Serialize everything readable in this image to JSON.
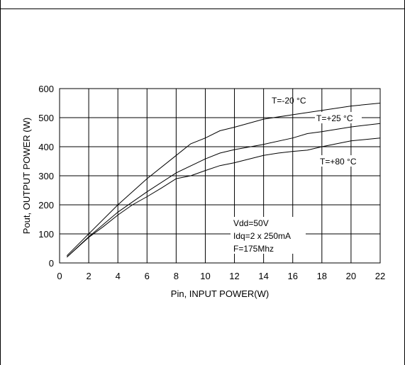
{
  "chart_data": {
    "type": "line",
    "title": "",
    "xlabel": "Pin, INPUT POWER(W)",
    "ylabel": "Pout, OUTPUT POWER (W)",
    "xlim": [
      0,
      22
    ],
    "ylim": [
      0,
      600
    ],
    "xticks": [
      0,
      2,
      4,
      6,
      8,
      10,
      12,
      14,
      16,
      18,
      20,
      22
    ],
    "yticks": [
      0,
      100,
      200,
      300,
      400,
      500,
      600
    ],
    "grid": true,
    "series": [
      {
        "name": "T=-20 °C",
        "x": [
          0.5,
          2,
          4,
          6,
          8,
          9,
          10,
          11,
          12,
          14,
          16,
          18,
          20,
          22
        ],
        "y": [
          25,
          100,
          200,
          290,
          370,
          410,
          430,
          455,
          467,
          495,
          510,
          525,
          540,
          550
        ]
      },
      {
        "name": "T=+25 °C",
        "x": [
          0.5,
          2,
          4,
          6,
          8,
          10,
          11,
          12,
          14,
          16,
          17,
          18,
          20,
          22
        ],
        "y": [
          20,
          90,
          175,
          245,
          310,
          358,
          378,
          390,
          408,
          430,
          445,
          452,
          468,
          480
        ]
      },
      {
        "name": "T=+80 °C",
        "x": [
          0.5,
          2,
          3,
          4,
          5,
          6,
          7,
          8,
          9,
          10,
          11,
          12,
          14,
          15,
          16,
          17,
          18,
          20,
          22
        ],
        "y": [
          20,
          88,
          125,
          165,
          200,
          228,
          258,
          290,
          300,
          318,
          335,
          345,
          370,
          378,
          384,
          388,
          400,
          420,
          430
        ]
      }
    ],
    "curve_labels": [
      "T=-20 °C",
      "T=+25 °C",
      "T=+80 °C"
    ],
    "conditions": [
      "Vdd=50V",
      "Idq=2 x 250mA",
      "F=175Mhz"
    ]
  }
}
